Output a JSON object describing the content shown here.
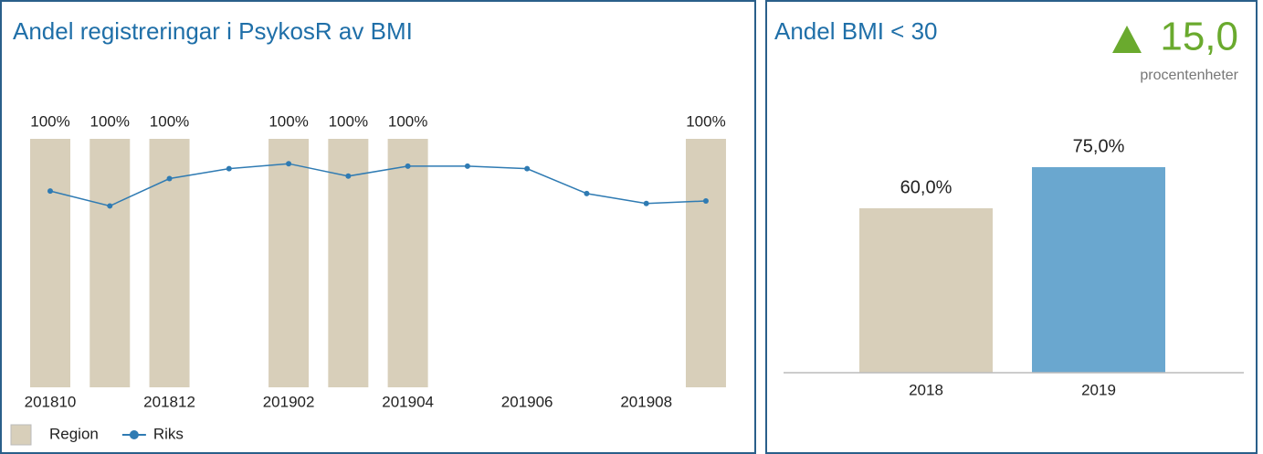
{
  "chart_data": [
    {
      "type": "bar",
      "title": "Andel registreringar i PsykosR av BMI",
      "categories": [
        "201810",
        null,
        "201812",
        null,
        "201902",
        null,
        "201904",
        null,
        "201906",
        null,
        "201908",
        null
      ],
      "ylim": [
        0,
        100
      ],
      "series": [
        {
          "name": "Region",
          "type": "bar",
          "color": "#d8cfba",
          "values": [
            100,
            100,
            100,
            null,
            100,
            100,
            100,
            null,
            null,
            null,
            null,
            100
          ],
          "value_labels": [
            "100%",
            "100%",
            "100%",
            null,
            "100%",
            "100%",
            "100%",
            null,
            null,
            null,
            null,
            "100%"
          ]
        },
        {
          "name": "Riks",
          "type": "line",
          "color": "#2f7bb3",
          "values": [
            79,
            73,
            84,
            88,
            90,
            85,
            89,
            89,
            88,
            78,
            74,
            75
          ]
        }
      ]
    },
    {
      "type": "bar",
      "title": "Andel BMI < 30",
      "change": {
        "value": 15,
        "label": "15,0",
        "unit": "procentenheter"
      },
      "categories": [
        "2018",
        "2019"
      ],
      "ylim": [
        0,
        100
      ],
      "values": [
        60,
        75
      ],
      "value_labels": [
        "60,0%",
        "75,0%"
      ],
      "colors": [
        "#d8cfba",
        "#6aa7cf"
      ]
    }
  ]
}
